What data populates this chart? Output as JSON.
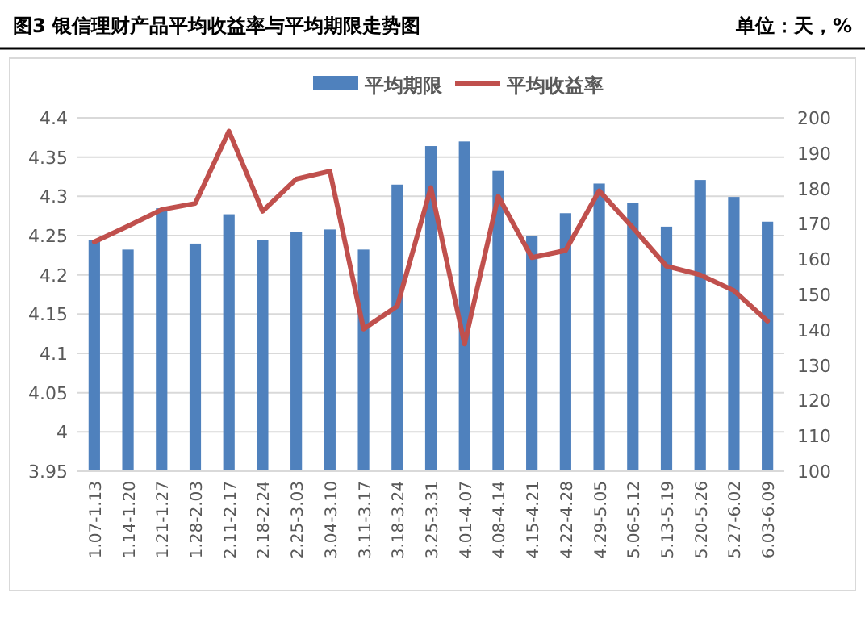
{
  "chart_data": {
    "type": "bar",
    "title": "图3 银信理财产品平均收益率与平均期限走势图",
    "subtitle": "单位：天，%",
    "categories": [
      "1.07-1.13",
      "1.14-1.20",
      "1.21-1.27",
      "1.28-2.03",
      "2.11-2.17",
      "2.18-2.24",
      "2.25-3.03",
      "3.04-3.10",
      "3.11-3.17",
      "3.18-3.24",
      "3.25-3.31",
      "4.01-4.07",
      "4.08-4.14",
      "4.15-4.21",
      "4.22-4.28",
      "4.29-5.05",
      "5.06-5.12",
      "5.13-5.19",
      "5.20-5.26",
      "5.27-6.02",
      "6.03-6.09"
    ],
    "series": [
      {
        "name": "平均期限",
        "axis": "y2",
        "color": "#4f81bd",
        "values": [
          165.3,
          162.7,
          174.4,
          164.4,
          172.7,
          165.3,
          167.6,
          168.4,
          162.7,
          181.1,
          192,
          193.3,
          185,
          166.5,
          173,
          181.4,
          176,
          169.2,
          182.4,
          177.6,
          170.6
        ]
      },
      {
        "name": "平均收益率",
        "type": "line",
        "color": "#c0504d",
        "values": [
          4.242,
          4.262,
          4.283,
          4.291,
          4.383,
          4.281,
          4.322,
          4.332,
          4.131,
          4.16,
          4.311,
          4.112,
          4.3,
          4.222,
          4.231,
          4.307,
          4.26,
          4.211,
          4.2,
          4.18,
          4.141
        ]
      }
    ],
    "ylim": [
      3.95,
      4.4
    ],
    "yticks": [
      3.95,
      4,
      4.05,
      4.1,
      4.15,
      4.2,
      4.25,
      4.3,
      4.35,
      4.4
    ],
    "y2lim": [
      100,
      200
    ],
    "y2ticks": [
      100,
      110,
      120,
      130,
      140,
      150,
      160,
      170,
      180,
      190,
      200
    ],
    "grid": "y",
    "legend": "top",
    "line_style": "solid"
  }
}
